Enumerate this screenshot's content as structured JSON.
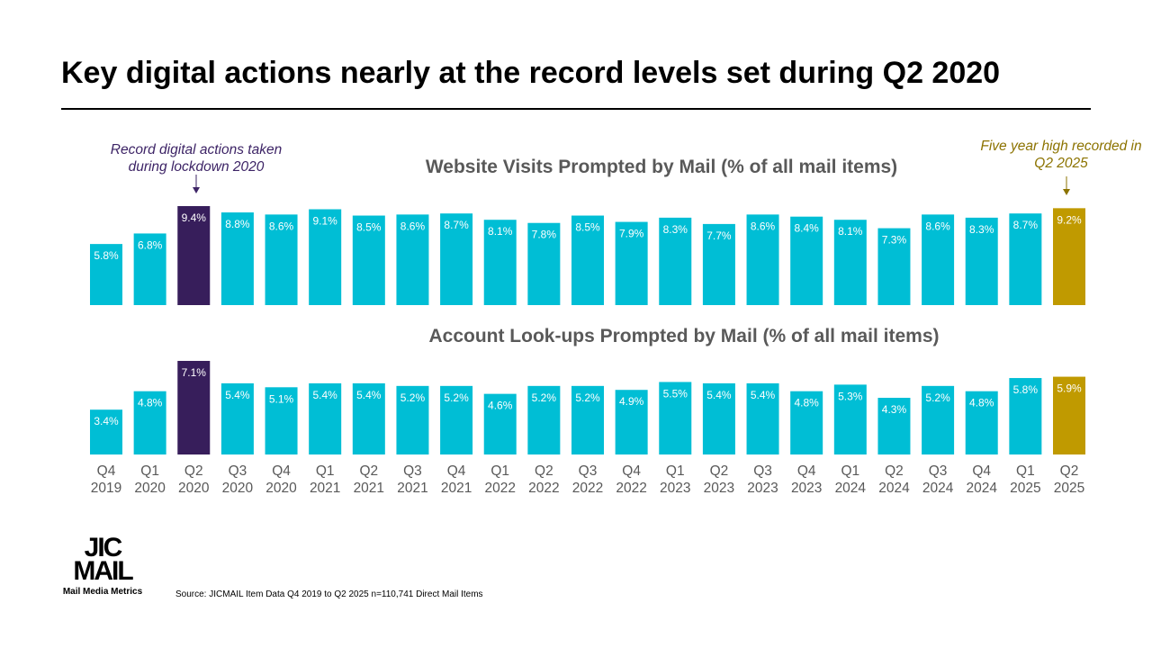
{
  "title": "Key digital actions nearly at the record levels set during Q2 2020",
  "annotations": {
    "left": [
      "Record digital actions taken",
      "during lockdown 2020"
    ],
    "right": [
      "Five year high recorded in",
      "Q2 2025"
    ]
  },
  "colors": {
    "default": "#00BED5",
    "lockdown": "#371E5B",
    "high": "#C09A00",
    "left_annotation": "#3D2466",
    "right_annotation": "#8C7300",
    "subtitle": "#595959"
  },
  "chart_data": [
    {
      "type": "bar",
      "title": "Website Visits Prompted by Mail (% of all mail items)",
      "categories": [
        [
          "Q4",
          "2019"
        ],
        [
          "Q1",
          "2020"
        ],
        [
          "Q2",
          "2020"
        ],
        [
          "Q3",
          "2020"
        ],
        [
          "Q4",
          "2020"
        ],
        [
          "Q1",
          "2021"
        ],
        [
          "Q2",
          "2021"
        ],
        [
          "Q3",
          "2021"
        ],
        [
          "Q4",
          "2021"
        ],
        [
          "Q1",
          "2022"
        ],
        [
          "Q2",
          "2022"
        ],
        [
          "Q3",
          "2022"
        ],
        [
          "Q4",
          "2022"
        ],
        [
          "Q1",
          "2023"
        ],
        [
          "Q2",
          "2023"
        ],
        [
          "Q3",
          "2023"
        ],
        [
          "Q4",
          "2023"
        ],
        [
          "Q1",
          "2024"
        ],
        [
          "Q2",
          "2024"
        ],
        [
          "Q3",
          "2024"
        ],
        [
          "Q4",
          "2024"
        ],
        [
          "Q1",
          "2025"
        ],
        [
          "Q2",
          "2025"
        ]
      ],
      "values": [
        5.8,
        6.8,
        9.4,
        8.8,
        8.6,
        9.1,
        8.5,
        8.6,
        8.7,
        8.1,
        7.8,
        8.5,
        7.9,
        8.3,
        7.7,
        8.6,
        8.4,
        8.1,
        7.3,
        8.6,
        8.3,
        8.7,
        9.2
      ],
      "data_label_suffix": "%",
      "highlight": {
        "2": "lockdown",
        "22": "high"
      },
      "ylim": [
        0,
        9.4
      ]
    },
    {
      "type": "bar",
      "title": "Account Look-ups Prompted by Mail (% of all mail items)",
      "categories": [
        [
          "Q4",
          "2019"
        ],
        [
          "Q1",
          "2020"
        ],
        [
          "Q2",
          "2020"
        ],
        [
          "Q3",
          "2020"
        ],
        [
          "Q4",
          "2020"
        ],
        [
          "Q1",
          "2021"
        ],
        [
          "Q2",
          "2021"
        ],
        [
          "Q3",
          "2021"
        ],
        [
          "Q4",
          "2021"
        ],
        [
          "Q1",
          "2022"
        ],
        [
          "Q2",
          "2022"
        ],
        [
          "Q3",
          "2022"
        ],
        [
          "Q4",
          "2022"
        ],
        [
          "Q1",
          "2023"
        ],
        [
          "Q2",
          "2023"
        ],
        [
          "Q3",
          "2023"
        ],
        [
          "Q4",
          "2023"
        ],
        [
          "Q1",
          "2024"
        ],
        [
          "Q2",
          "2024"
        ],
        [
          "Q3",
          "2024"
        ],
        [
          "Q4",
          "2024"
        ],
        [
          "Q1",
          "2025"
        ],
        [
          "Q2",
          "2025"
        ]
      ],
      "values": [
        3.4,
        4.8,
        7.1,
        5.4,
        5.1,
        5.4,
        5.4,
        5.2,
        5.2,
        4.6,
        5.2,
        5.2,
        4.9,
        5.5,
        5.4,
        5.4,
        4.8,
        5.3,
        4.3,
        5.2,
        4.8,
        5.8,
        5.9
      ],
      "data_label_suffix": "%",
      "highlight": {
        "2": "lockdown",
        "22": "high"
      },
      "ylim": [
        0,
        7.1
      ]
    }
  ],
  "logo": {
    "text": "JICMAIL",
    "tagline": "Mail Media Metrics"
  },
  "source": "Source: JICMAIL Item Data Q4 2019 to Q2 2025 n=110,741 Direct Mail Items"
}
